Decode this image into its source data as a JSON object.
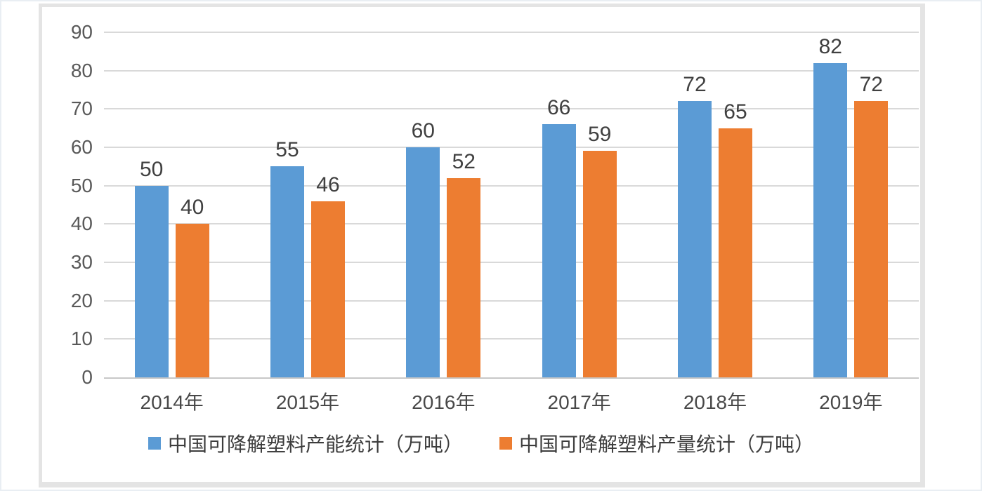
{
  "chart_data": {
    "type": "bar",
    "title": "",
    "xlabel": "",
    "ylabel": "",
    "categories": [
      "2014年",
      "2015年",
      "2016年",
      "2017年",
      "2018年",
      "2019年"
    ],
    "series": [
      {
        "name": "中国可降解塑料产能统计（万吨）",
        "color": "#5B9BD5",
        "values": [
          50,
          55,
          60,
          66,
          72,
          82
        ]
      },
      {
        "name": "中国可降解塑料产量统计（万吨）",
        "color": "#ED7D31",
        "values": [
          40,
          46,
          52,
          59,
          65,
          72
        ]
      }
    ],
    "ylim": [
      0,
      90
    ],
    "ytick_step": 10,
    "yticks": [
      0,
      10,
      20,
      30,
      40,
      50,
      60,
      70,
      80,
      90
    ],
    "grid": true,
    "data_labels": true,
    "legend_position": "bottom"
  },
  "colors": {
    "gridline": "#d9d9d9",
    "axis_line": "#c8c8c8",
    "tick_text": "#595959",
    "data_label_text": "#404040",
    "frame_border": "#e4e4e4"
  }
}
